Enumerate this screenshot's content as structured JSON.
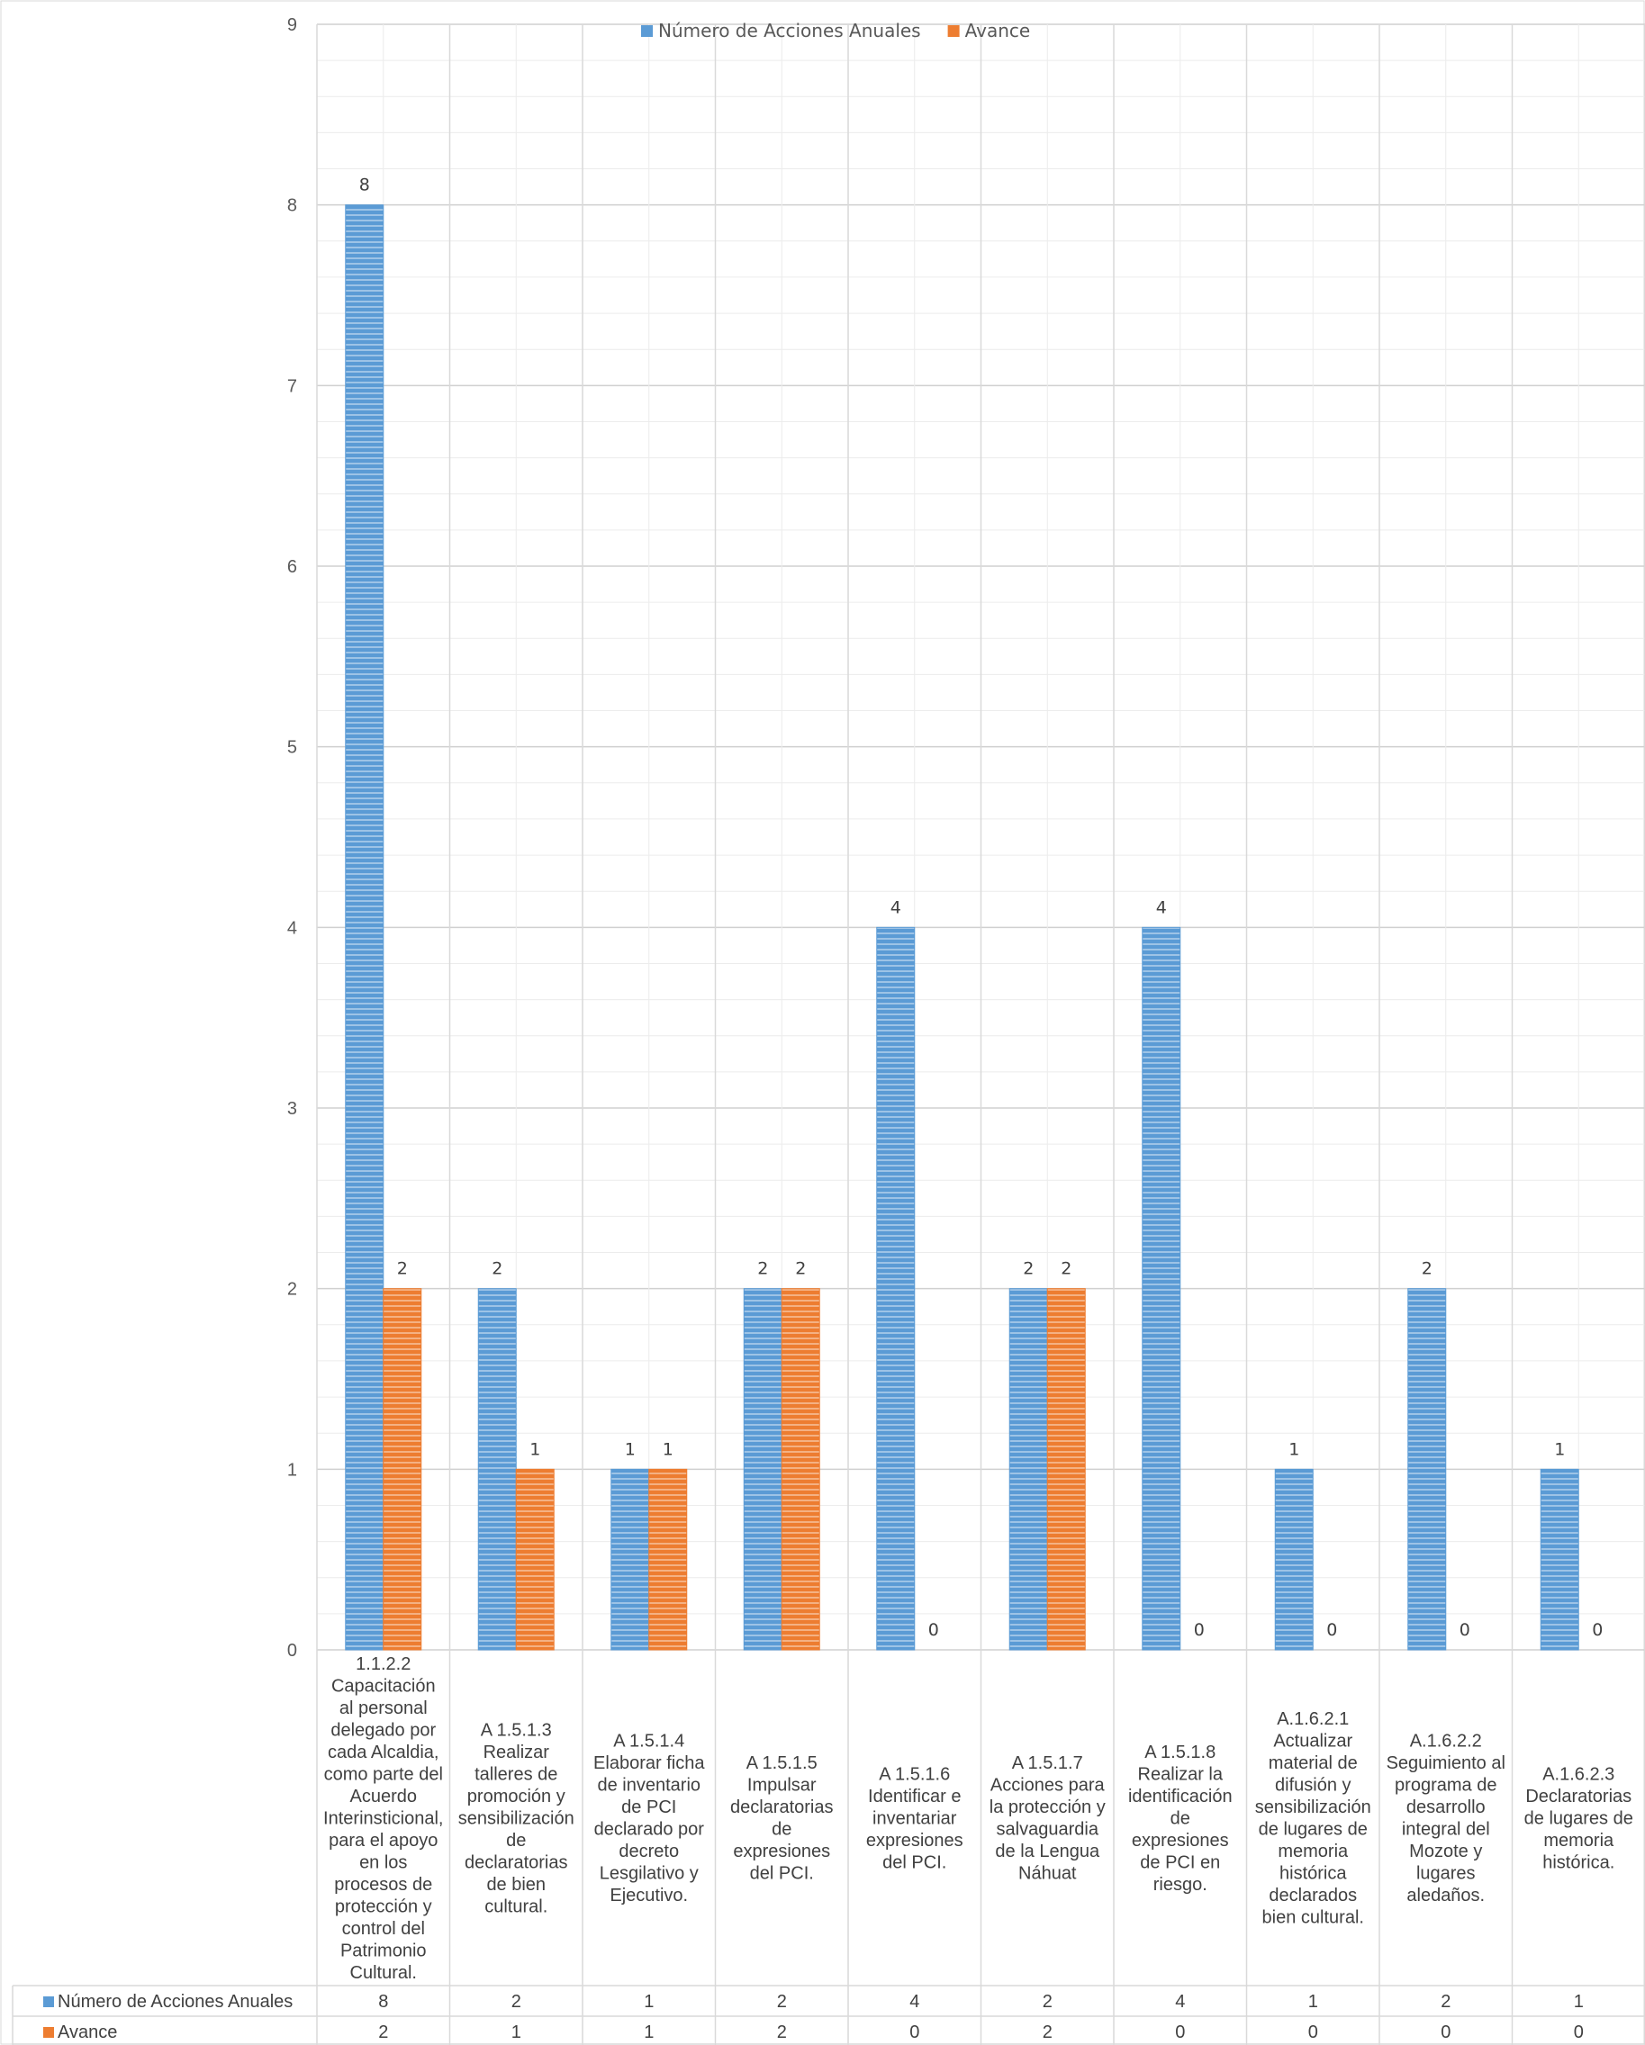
{
  "chart_data": {
    "type": "bar",
    "categories": [
      "1.1.2.2 Capacitación al personal delegado por cada Alcaldia, como parte del Acuerdo Interinsticional, para el apoyo en los procesos de protección y control del Patrimonio Cultural.",
      "A 1.5.1.3 Realizar talleres de promoción y sensibilización de declaratorias de bien cultural.",
      "A 1.5.1.4 Elaborar ficha de inventario de PCI declarado por decreto Lesgilativo y Ejecutivo.",
      "A 1.5.1.5 Impulsar declaratorias de expresiones del PCI.",
      "A 1.5.1.6 Identificar e inventariar expresiones del PCI.",
      "A 1.5.1.7 Acciones para la protección y salvaguardia de la Lengua Náhuat",
      "A 1.5.1.8 Realizar la identificación de expresiones de PCI en riesgo.",
      "A.1.6.2.1 Actualizar material de difusión y sensibilización de lugares de memoria histórica declarados bien cultural.",
      "A.1.6.2.2 Seguimiento al programa de desarrollo integral del Mozote y lugares aledaños.",
      "A.1.6.2.3 Declaratorias de lugares de memoria histórica."
    ],
    "category_lines": [
      [
        "1.1.2.2",
        "Capacitación",
        "al personal",
        "delegado por",
        "cada Alcaldia,",
        "como parte del",
        "Acuerdo",
        "Interinsticional,",
        "para el apoyo",
        "en los",
        "procesos de",
        "protección y",
        "control del",
        "Patrimonio",
        "Cultural."
      ],
      [
        "A 1.5.1.3",
        "Realizar",
        "talleres de",
        "promoción y",
        "sensibilización",
        "de",
        "declaratorias",
        "de bien",
        "cultural."
      ],
      [
        "A 1.5.1.4",
        "Elaborar ficha",
        "de inventario",
        "de PCI",
        "declarado por",
        "decreto",
        "Lesgilativo y",
        "Ejecutivo."
      ],
      [
        "A 1.5.1.5",
        "Impulsar",
        "declaratorias",
        "de",
        "expresiones",
        "del PCI."
      ],
      [
        "A 1.5.1.6",
        "Identificar e",
        "inventariar",
        "expresiones",
        "del PCI."
      ],
      [
        "A 1.5.1.7",
        "Acciones para",
        "la protección y",
        "salvaguardia",
        "de la Lengua",
        "Náhuat"
      ],
      [
        "A 1.5.1.8",
        "Realizar la",
        "identificación",
        "de",
        "expresiones",
        "de PCI en",
        "riesgo."
      ],
      [
        "A.1.6.2.1",
        "Actualizar",
        "material de",
        "difusión y",
        "sensibilización",
        "de lugares de",
        "memoria",
        "histórica",
        "declarados",
        "bien cultural."
      ],
      [
        "A.1.6.2.2",
        "Seguimiento al",
        "programa de",
        "desarrollo",
        "integral del",
        "Mozote y",
        "lugares",
        "aledaños."
      ],
      [
        "A.1.6.2.3",
        "Declaratorias",
        "de lugares de",
        "memoria",
        "histórica."
      ]
    ],
    "series": [
      {
        "name": "Número de Acciones Anuales",
        "values": [
          8,
          2,
          1,
          2,
          4,
          2,
          4,
          1,
          2,
          1
        ],
        "color": "#5B9BD5"
      },
      {
        "name": "Avance",
        "values": [
          2,
          1,
          1,
          2,
          0,
          2,
          0,
          0,
          0,
          0
        ],
        "color": "#ED7D31"
      }
    ],
    "ylim": [
      0,
      9
    ],
    "yticks": [
      0,
      1,
      2,
      3,
      4,
      5,
      6,
      7,
      8,
      9
    ],
    "legend_position": "top",
    "grid": true,
    "data_table": true
  }
}
